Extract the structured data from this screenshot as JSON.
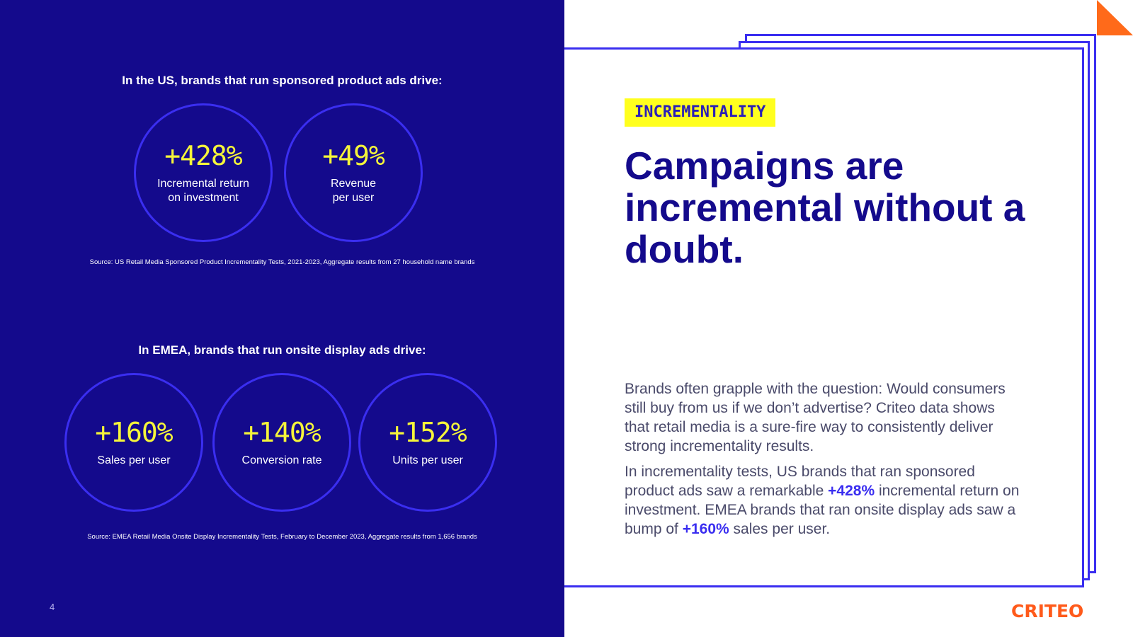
{
  "us": {
    "heading": "In the US, brands that run sponsored product ads drive:",
    "stats": [
      {
        "value": "+428%",
        "label": "Incremental return\non investment"
      },
      {
        "value": "+49%",
        "label": "Revenue\nper user"
      }
    ],
    "source": "Source: US Retail Media Sponsored Product Incrementality Tests, 2021-2023, Aggregate results from 27 household name brands"
  },
  "emea": {
    "heading": "In EMEA, brands that run onsite display ads drive:",
    "stats": [
      {
        "value": "+160%",
        "label": "Sales per user"
      },
      {
        "value": "+140%",
        "label": "Conversion rate"
      },
      {
        "value": "+152%",
        "label": "Units per user"
      }
    ],
    "source": "Source: EMEA Retail Media Onsite Display Incrementality Tests, February to December 2023, Aggregate results from 1,656 brands"
  },
  "page_number": "4",
  "tag": "INCREMENTALITY",
  "headline": "Campaigns are incremental without a doubt.",
  "paragraph1": "Brands often grapple with the question: Would consumers still buy from us if we don’t advertise? Criteo data shows that retail media is a sure-fire way to consistently deliver strong incrementality results.",
  "paragraph2": {
    "part1": "In incrementality tests, US brands that ran sponsored product ads saw a remarkable ",
    "highlight1": "+428%",
    "part2": " incremental return on investment. EMEA brands that ran onsite display ads saw a bump of ",
    "highlight2": "+160%",
    "part3": " sales per user."
  },
  "logo": "CRITEO",
  "colors": {
    "navy": "#140a8c",
    "accent_blue": "#3a2ef0",
    "yellow": "#f5f53a",
    "tag_yellow": "#ffff1e",
    "orange": "#ff6a1a"
  }
}
